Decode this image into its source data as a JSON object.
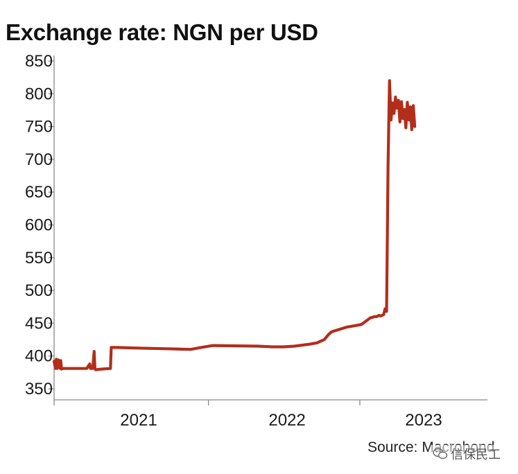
{
  "chart_data": {
    "type": "line",
    "title": "Exchange rate: NGN per USD",
    "xlabel": "",
    "ylabel": "",
    "ylim": [
      350,
      850
    ],
    "yticks": [
      350,
      400,
      450,
      500,
      550,
      600,
      650,
      700,
      750,
      800,
      850
    ],
    "x_range": [
      2020.93,
      2023.85
    ],
    "xtick_positions": [
      2020.93,
      2021.97,
      2022.99
    ],
    "xtick_labels": [
      {
        "label": "2021",
        "at": 2021.5
      },
      {
        "label": "2022",
        "at": 2022.5
      },
      {
        "label": "2023",
        "at": 2023.42
      }
    ],
    "line_color": "#B22E1B",
    "series": [
      {
        "x": [
          2020.93,
          2020.94,
          2020.945,
          2020.95,
          2020.96,
          2020.97,
          2020.975,
          2020.98,
          2020.99,
          2021.0,
          2021.05,
          2021.1,
          2021.15,
          2021.17,
          2021.175,
          2021.19,
          2021.2,
          2021.205,
          2021.21,
          2021.25,
          2021.31,
          2021.315,
          2021.35,
          2021.5,
          2021.7,
          2021.85,
          2021.92,
          2022.0,
          2022.3,
          2022.3,
          2022.4,
          2022.48,
          2022.55,
          2022.65,
          2022.7,
          2022.75,
          2022.78,
          2022.8,
          2022.9,
          2023.0,
          2023.06,
          2023.09,
          2023.095,
          2023.1,
          2023.105,
          2023.11,
          2023.12,
          2023.13,
          2023.14,
          2023.15,
          2023.16,
          2023.17,
          2023.18,
          2023.19,
          2023.2,
          2023.21,
          2023.22,
          2023.23,
          2023.24,
          2023.25,
          2023.26,
          2023.27,
          2023.28,
          2023.29,
          2023.3,
          2023.31,
          2023.32,
          2023.33,
          2023.34,
          2023.35,
          2023.36
        ],
        "y": [
          392,
          381,
          395,
          381,
          394,
          381,
          393,
          380,
          381,
          381,
          381,
          381,
          381,
          388,
          381,
          381,
          407,
          381,
          379,
          380,
          381,
          413,
          413,
          412,
          411,
          410,
          413,
          416,
          415,
          415,
          414,
          414,
          415,
          418,
          420,
          425,
          433,
          437,
          444,
          448,
          458,
          460,
          460,
          460,
          460,
          461,
          462,
          461,
          462,
          463,
          472,
          468,
          690,
          820,
          760,
          786,
          770,
          795,
          778,
          790,
          757,
          788,
          762,
          776,
          748,
          787,
          760,
          780,
          745,
          782,
          750
        ]
      }
    ],
    "source": "Source: Macrobond"
  },
  "watermark": {
    "text": "信保民工",
    "icon": "wechat-icon"
  }
}
